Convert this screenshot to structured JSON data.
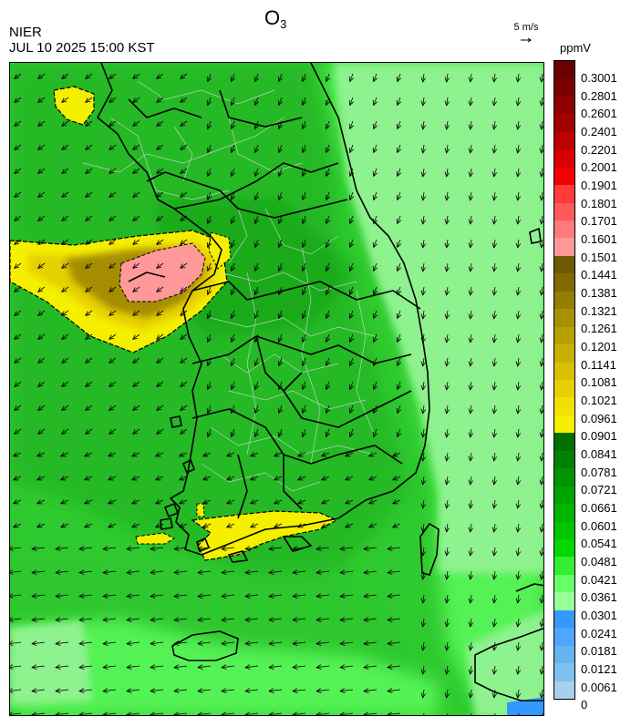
{
  "header": {
    "title_main": "O",
    "title_sub": "3",
    "agency": "NIER",
    "datetime": "JUL 10 2025 15:00 KST",
    "wind_reference": "5 m/s",
    "unit": "ppmV"
  },
  "legend": {
    "labels": [
      "0.3001",
      "0.2801",
      "0.2601",
      "0.2401",
      "0.2201",
      "0.2001",
      "0.1901",
      "0.1801",
      "0.1701",
      "0.1601",
      "0.1501",
      "0.1441",
      "0.1381",
      "0.1321",
      "0.1261",
      "0.1201",
      "0.1141",
      "0.1081",
      "0.1021",
      "0.0961",
      "0.0901",
      "0.0841",
      "0.0781",
      "0.0721",
      "0.0661",
      "0.0601",
      "0.0541",
      "0.0481",
      "0.0421",
      "0.0361",
      "0.0301",
      "0.0241",
      "0.0181",
      "0.0121",
      "0.0061",
      "0"
    ],
    "colors": [
      "#6b0000",
      "#7a0000",
      "#8f0000",
      "#a30000",
      "#bd0000",
      "#d60000",
      "#f50000",
      "#ff3b3b",
      "#ff5a5a",
      "#ff7a7a",
      "#ff9999",
      "#6e5a00",
      "#806a00",
      "#947d00",
      "#a89000",
      "#b8a000",
      "#c8b000",
      "#d8c000",
      "#e6d000",
      "#f2e000",
      "#f5ef00",
      "#006f00",
      "#008200",
      "#009400",
      "#00a400",
      "#00b400",
      "#00c400",
      "#00d800",
      "#33ee33",
      "#66ff66",
      "#99ff99",
      "#3399ff",
      "#4fa6ff",
      "#66b3f2",
      "#80c0f0",
      "#a6d0ec"
    ]
  },
  "map": {
    "background_color": "#2fca2f",
    "sea_bright_color": "#54f254",
    "sea_pale_color": "#8ef28e",
    "hotspot_colors": [
      "#f5ef00",
      "#e6d000",
      "#947d00",
      "#ff9999"
    ],
    "low_ozone_color": "#3399ff"
  }
}
